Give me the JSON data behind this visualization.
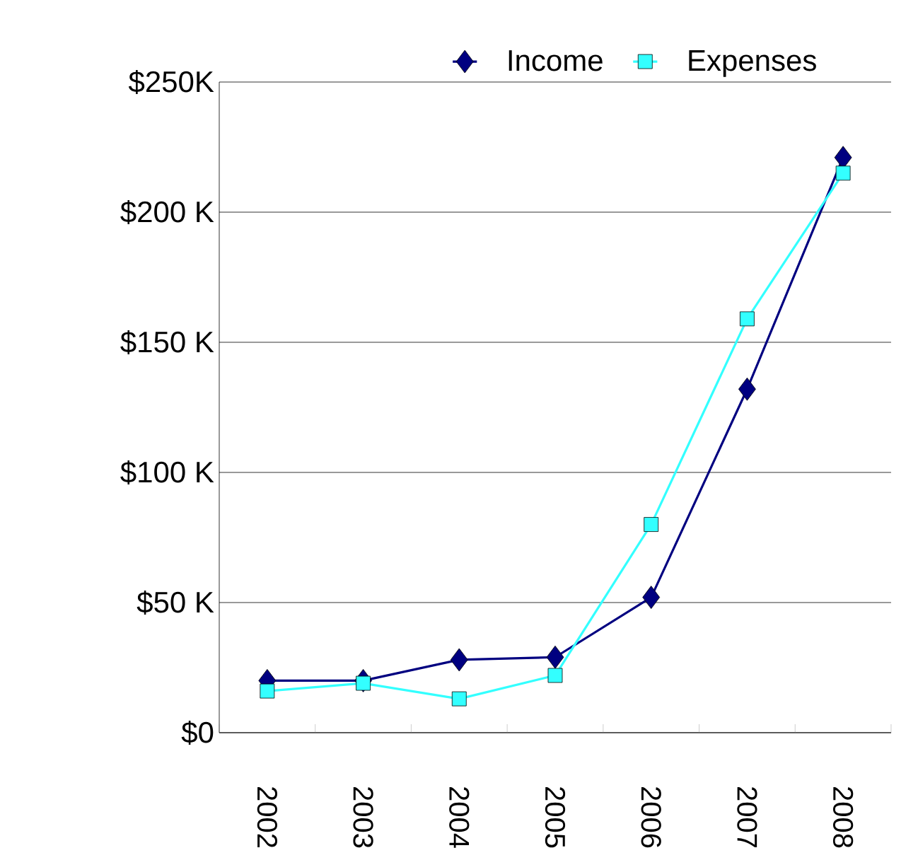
{
  "chart_data": {
    "type": "line",
    "categories": [
      "2002",
      "2003",
      "2004",
      "2005",
      "2006",
      "2007",
      "2008"
    ],
    "series": [
      {
        "name": "Income",
        "color": "#000080",
        "marker": "diamond",
        "values": [
          20,
          20,
          28,
          29,
          52,
          132,
          221
        ]
      },
      {
        "name": "Expenses",
        "color": "#33ffff",
        "marker": "square",
        "values": [
          16,
          19,
          13,
          22,
          80,
          159,
          215
        ]
      }
    ],
    "ylim": [
      0,
      250
    ],
    "yticks": [
      {
        "value": 0,
        "label": "$0"
      },
      {
        "value": 50,
        "label": "$50 K"
      },
      {
        "value": 100,
        "label": "$100 K"
      },
      {
        "value": 150,
        "label": "$150 K"
      },
      {
        "value": 200,
        "label": "$200 K"
      },
      {
        "value": 250,
        "label": "$250K"
      }
    ],
    "grid": "y",
    "legend": "top",
    "line_style": "solid"
  }
}
